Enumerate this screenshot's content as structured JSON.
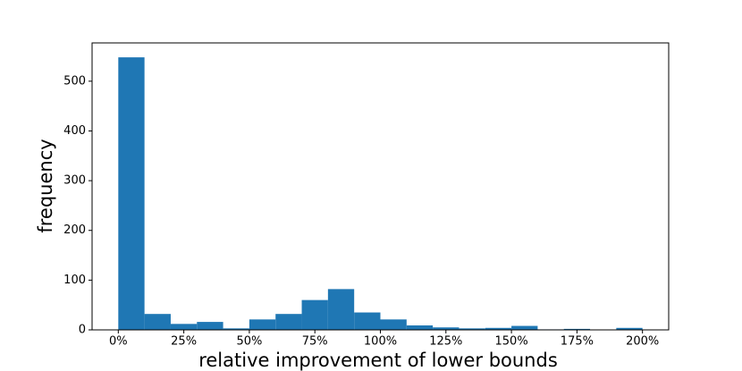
{
  "chart_data": {
    "type": "histogram",
    "xlabel": "relative improvement of lower bounds",
    "ylabel": "frequency",
    "bins": [
      0,
      10,
      20,
      30,
      40,
      50,
      60,
      70,
      80,
      90,
      100,
      110,
      120,
      130,
      140,
      150,
      160,
      170,
      180,
      190,
      200
    ],
    "values": [
      548,
      32,
      12,
      16,
      3,
      21,
      32,
      60,
      82,
      35,
      21,
      9,
      5,
      3,
      4,
      8,
      1,
      2,
      0,
      4
    ],
    "color": "#1f77b4",
    "xlim": [
      -10,
      210
    ],
    "ylim": [
      0,
      577
    ],
    "xticks": [
      {
        "value": 0,
        "label": "0%"
      },
      {
        "value": 25,
        "label": "25%"
      },
      {
        "value": 50,
        "label": "50%"
      },
      {
        "value": 75,
        "label": "75%"
      },
      {
        "value": 100,
        "label": "100%"
      },
      {
        "value": 125,
        "label": "125%"
      },
      {
        "value": 150,
        "label": "150%"
      },
      {
        "value": 175,
        "label": "175%"
      },
      {
        "value": 200,
        "label": "200%"
      }
    ],
    "yticks": [
      0,
      100,
      200,
      300,
      400,
      500
    ]
  }
}
